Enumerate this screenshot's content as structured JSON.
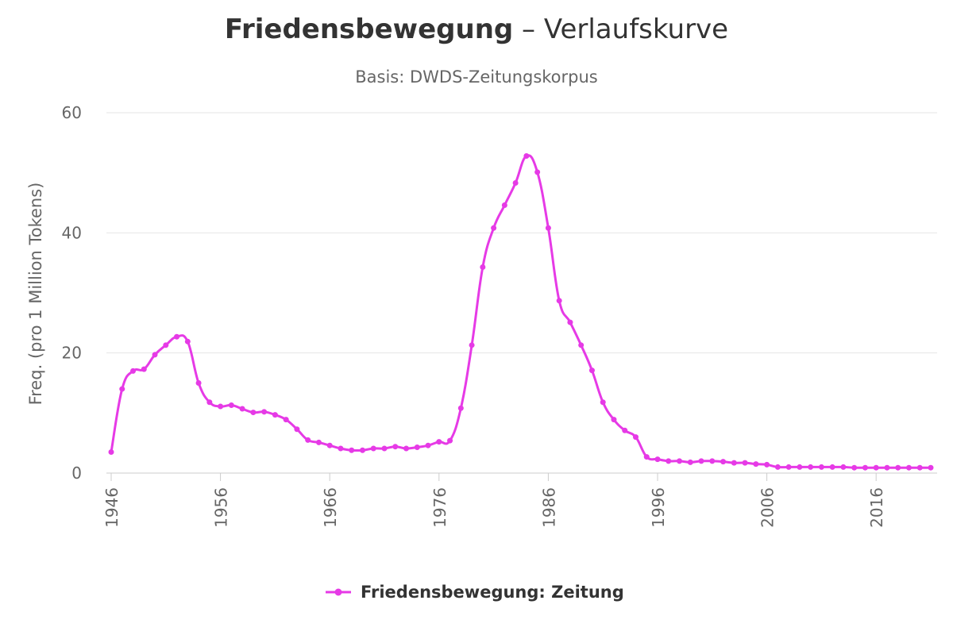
{
  "title": {
    "keyword": "Friedensbewegung",
    "rest": " – Verlaufskurve"
  },
  "subtitle": "Basis: DWDS-Zeitungskorpus",
  "colors": {
    "series": "#e63ae6",
    "grid": "#e6e6e6",
    "axis": "#cccccc"
  },
  "chart_data": {
    "type": "line",
    "ylabel": "Freq. (pro 1 Million Tokens)",
    "xlabel": "",
    "ylim": [
      0,
      60
    ],
    "xlim": [
      1946,
      2021
    ],
    "yticks": [
      0,
      20,
      40,
      60
    ],
    "xticks": [
      1946,
      1956,
      1966,
      1976,
      1986,
      1996,
      2006,
      2016
    ],
    "grid": true,
    "legend": "bottom-center",
    "series": [
      {
        "name": "Friedensbewegung: Zeitung",
        "x": [
          1946,
          1947,
          1948,
          1949,
          1950,
          1951,
          1952,
          1953,
          1954,
          1955,
          1956,
          1957,
          1958,
          1959,
          1960,
          1961,
          1962,
          1963,
          1964,
          1965,
          1966,
          1967,
          1968,
          1969,
          1970,
          1971,
          1972,
          1973,
          1974,
          1975,
          1976,
          1977,
          1978,
          1979,
          1980,
          1981,
          1982,
          1983,
          1984,
          1985,
          1986,
          1987,
          1988,
          1989,
          1990,
          1991,
          1992,
          1993,
          1994,
          1995,
          1996,
          1997,
          1998,
          1999,
          2000,
          2001,
          2002,
          2003,
          2004,
          2005,
          2006,
          2007,
          2008,
          2009,
          2010,
          2011,
          2012,
          2013,
          2014,
          2015,
          2016,
          2017,
          2018,
          2019,
          2020,
          2021
        ],
        "values": [
          3.5,
          14,
          17,
          17.3,
          19.7,
          21.3,
          22.7,
          21.9,
          15,
          11.8,
          11.1,
          11.3,
          10.7,
          10.1,
          10.2,
          9.7,
          8.9,
          7.3,
          5.5,
          5.1,
          4.6,
          4.1,
          3.8,
          3.8,
          4.1,
          4.1,
          4.4,
          4.1,
          4.3,
          4.6,
          5.2,
          5.4,
          10.8,
          21.3,
          34.3,
          40.8,
          44.6,
          48.3,
          52.8,
          50.1,
          40.8,
          28.7,
          25.1,
          21.3,
          17.1,
          11.8,
          8.9,
          7.1,
          6,
          2.7,
          2.3,
          2,
          2,
          1.8,
          2,
          2,
          1.9,
          1.7,
          1.7,
          1.5,
          1.4,
          1,
          1,
          1,
          1,
          1,
          1,
          1,
          0.9,
          0.9,
          0.9,
          0.9,
          0.9,
          0.9,
          0.9,
          0.9
        ]
      }
    ]
  }
}
